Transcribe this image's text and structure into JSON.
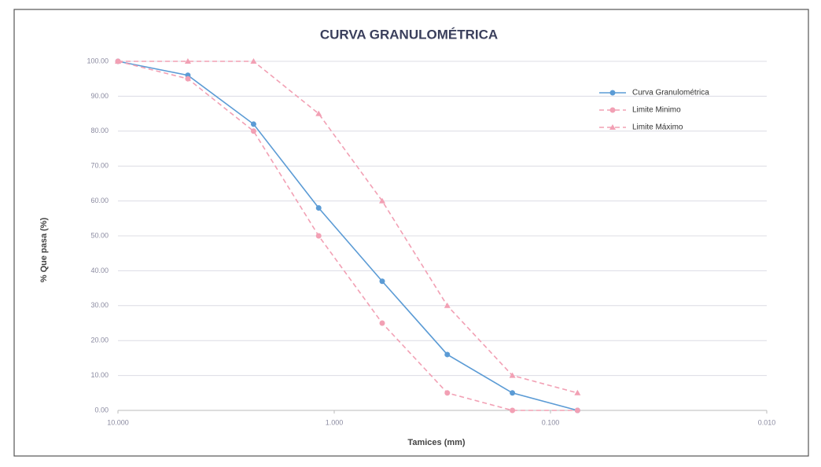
{
  "chart_data": {
    "type": "line",
    "title": "CURVA GRANULOMÉTRICA",
    "xlabel": "Tamices (mm)",
    "ylabel": "% Que pasa (%)",
    "x": [
      10,
      4.75,
      2.36,
      1.18,
      0.6,
      0.3,
      0.15,
      0.075
    ],
    "series": [
      {
        "name": "Curva Granulométrica",
        "color": "#5b9bd5",
        "linestyle": "solid",
        "marker": "circle",
        "values": [
          100,
          96,
          82,
          58,
          37,
          16,
          5,
          0
        ]
      },
      {
        "name": "Limite Minimo",
        "color": "#f2a0b4",
        "linestyle": "dashed",
        "marker": "circle",
        "values": [
          100,
          95,
          80,
          50,
          25,
          5,
          0,
          0
        ]
      },
      {
        "name": "Limite Máximo",
        "color": "#f2a0b4",
        "linestyle": "dashed",
        "marker": "triangle",
        "values": [
          100,
          100,
          100,
          85,
          60,
          30,
          10,
          5
        ]
      }
    ],
    "xscale": "log",
    "xlim": [
      10,
      0.01
    ],
    "xticks": [
      {
        "value": 10,
        "label": "10.000"
      },
      {
        "value": 1,
        "label": "1.000"
      },
      {
        "value": 0.1,
        "label": "0.100"
      },
      {
        "value": 0.01,
        "label": "0.010"
      }
    ],
    "ylim": [
      0,
      100
    ],
    "yticks": [
      {
        "value": 0,
        "label": "0.00"
      },
      {
        "value": 10,
        "label": "10.00"
      },
      {
        "value": 20,
        "label": "20.00"
      },
      {
        "value": 30,
        "label": "30.00"
      },
      {
        "value": 40,
        "label": "40.00"
      },
      {
        "value": 50,
        "label": "50.00"
      },
      {
        "value": 60,
        "label": "60.00"
      },
      {
        "value": 70,
        "label": "70.00"
      },
      {
        "value": 80,
        "label": "80.00"
      },
      {
        "value": 90,
        "label": "90.00"
      },
      {
        "value": 100,
        "label": "100.00"
      }
    ],
    "grid": true,
    "legend": "upper right"
  }
}
